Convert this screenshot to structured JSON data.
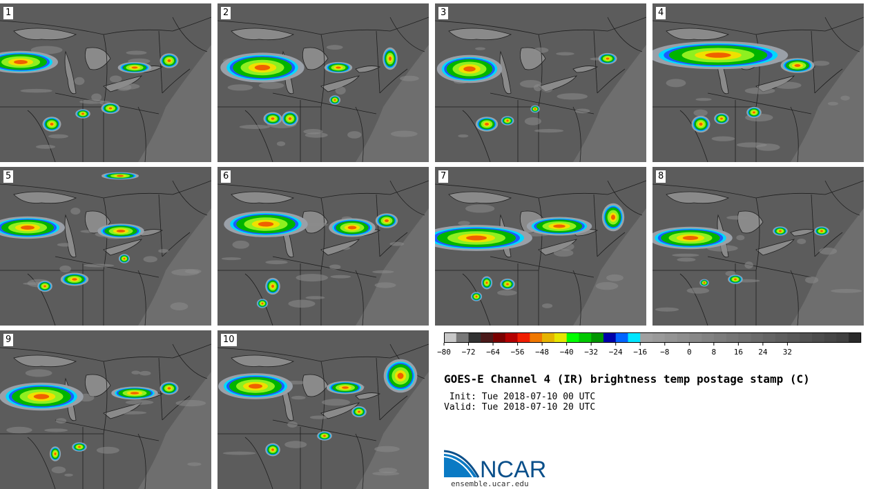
{
  "title": "GOES-E Channel 4 (IR) brightness temp postage stamp (C)",
  "init_label": "Init:",
  "init_value": "Tue 2018-07-10 00 UTC",
  "valid_label": "Valid:",
  "valid_value": "Tue 2018-07-10 20 UTC",
  "logo_text": "NCAR",
  "site": "ensemble.ucar.edu",
  "panels": [
    {
      "label": "1"
    },
    {
      "label": "2"
    },
    {
      "label": "3"
    },
    {
      "label": "4"
    },
    {
      "label": "5"
    },
    {
      "label": "6"
    },
    {
      "label": "7"
    },
    {
      "label": "8"
    },
    {
      "label": "9"
    },
    {
      "label": "10"
    }
  ],
  "colorbar": {
    "ticks": [
      "−80",
      "−72",
      "−64",
      "−56",
      "−48",
      "−40",
      "−32",
      "−24",
      "−16",
      "−8",
      "0",
      "8",
      "16",
      "24",
      "32"
    ],
    "colors": [
      "#c8c8c8",
      "#787878",
      "#323232",
      "#4b1a1a",
      "#7a0000",
      "#b40000",
      "#f01e00",
      "#f07800",
      "#e6b400",
      "#e6e600",
      "#00ff00",
      "#00c800",
      "#009600",
      "#0000aa",
      "#0064ff",
      "#00e6ff",
      "#a0a0a0",
      "#9a9a9a",
      "#949494",
      "#8e8e8e",
      "#888888",
      "#828282",
      "#7c7c7c",
      "#767676",
      "#707070",
      "#6a6a6a",
      "#646464",
      "#5e5e5e",
      "#585858",
      "#525252",
      "#4c4c4c",
      "#464646",
      "#404040",
      "#2a2a2a"
    ]
  }
}
